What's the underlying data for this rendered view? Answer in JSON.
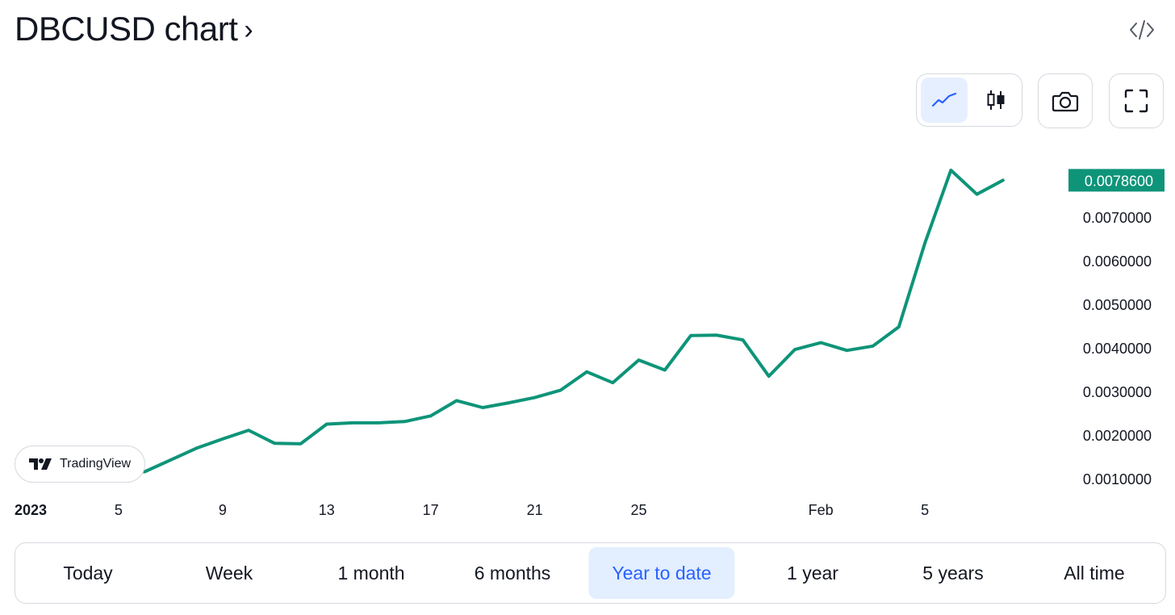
{
  "header": {
    "title": "DBCUSD chart",
    "chevron": "›"
  },
  "toolbar": {
    "line_icon": "line-chart-icon",
    "candle_icon": "candlestick-icon",
    "camera_icon": "camera-icon",
    "fullscreen_icon": "fullscreen-icon",
    "embed_icon": "embed-code-icon"
  },
  "watermark": {
    "label": "TradingView"
  },
  "chart_data": {
    "type": "line",
    "x_labels": [
      "2023",
      "5",
      "9",
      "13",
      "17",
      "21",
      "25",
      "Feb",
      "5"
    ],
    "x": [
      "2023-01-05",
      "2023-01-06",
      "2023-01-07",
      "2023-01-08",
      "2023-01-09",
      "2023-01-10",
      "2023-01-11",
      "2023-01-12",
      "2023-01-13",
      "2023-01-14",
      "2023-01-15",
      "2023-01-16",
      "2023-01-17",
      "2023-01-18",
      "2023-01-19",
      "2023-01-20",
      "2023-01-21",
      "2023-01-22",
      "2023-01-23",
      "2023-01-24",
      "2023-01-25",
      "2023-01-26",
      "2023-01-27",
      "2023-01-28",
      "2023-01-29",
      "2023-01-30",
      "2023-01-31",
      "2023-02-01",
      "2023-02-02",
      "2023-02-03",
      "2023-02-04",
      "2023-02-05",
      "2023-02-06",
      "2023-02-07",
      "2023-02-08"
    ],
    "series": [
      {
        "values": [
          0.00122,
          0.00118,
          0.00145,
          0.00172,
          0.00193,
          0.00213,
          0.00183,
          0.00182,
          0.00227,
          0.0023,
          0.0023,
          0.00233,
          0.00246,
          0.00281,
          0.00265,
          0.00276,
          0.00288,
          0.00305,
          0.00347,
          0.00322,
          0.00374,
          0.00351,
          0.0043,
          0.00431,
          0.0042,
          0.00337,
          0.00398,
          0.00414,
          0.00396,
          0.00406,
          0.0045,
          0.00642,
          0.00809,
          0.00754,
          0.00786
        ]
      }
    ],
    "y_ticks": [
      "0.0010000",
      "0.0020000",
      "0.0030000",
      "0.0040000",
      "0.0050000",
      "0.0060000",
      "0.0070000"
    ],
    "last_price_label": "0.0078600",
    "ylim": [
      0.0008,
      0.0082
    ],
    "grid": false,
    "line_color": "#0e9479"
  },
  "ranges": {
    "items": [
      "Today",
      "Week",
      "1 month",
      "6 months",
      "Year to date",
      "1 year",
      "5 years",
      "All time"
    ],
    "active": "Year to date"
  },
  "colors": {
    "accent": "#2962ff",
    "line": "#0e9479",
    "active_bg": "#e3eefe"
  }
}
